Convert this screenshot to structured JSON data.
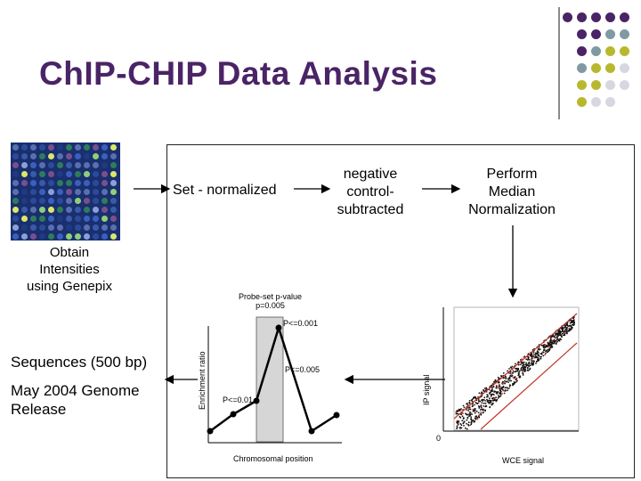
{
  "header": {
    "title": "ChIP-CHIP Data Analysis"
  },
  "decor": {
    "dot_colors": [
      "#4a2466",
      "#7f9aa3",
      "#b8b82e",
      "#d7d7e1"
    ],
    "accent_title": "#4a2466"
  },
  "steps": {
    "obtain": "Obtain\nIntensities\nusing Genepix",
    "set_normalized": "Set - normalized",
    "negative": "negative\ncontrol-\nsubtracted",
    "median": "Perform\nMedian\nNormalization"
  },
  "left_labels": {
    "sequences": "Sequences (500 bp)",
    "genome": "May 2004 Genome\nRelease"
  },
  "enrichment_plot": {
    "probe_label": "Probe-set p-value\np=0.005",
    "p001": "P<=0.001",
    "p005": "P<=0.005",
    "p01": "P<=0.01",
    "ylabel": "Enrichment ratio",
    "xlabel": "Chromosomal position"
  },
  "scatter_plot": {
    "ylabel": "IP signal",
    "xlabel": "WCE signal",
    "origin": "0"
  }
}
